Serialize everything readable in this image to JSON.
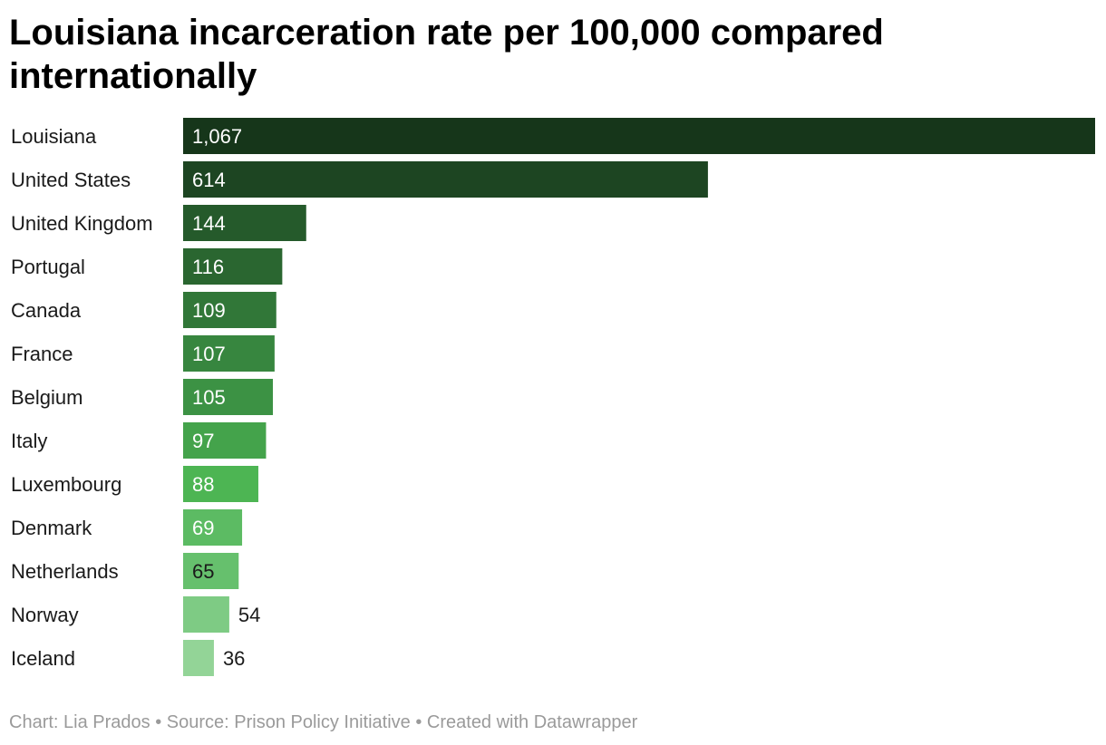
{
  "title": "Louisiana incarceration rate per 100,000 compared internationally",
  "footer": {
    "chart_credit": "Chart: Lia Prados",
    "source": "Source: Prison Policy Initiative",
    "created_with": "Created with Datawrapper"
  },
  "chart_data": {
    "type": "bar",
    "orientation": "horizontal",
    "title": "Louisiana incarceration rate per 100,000 compared internationally",
    "categories": [
      "Louisiana",
      "United States",
      "United Kingdom",
      "Portugal",
      "Canada",
      "France",
      "Belgium",
      "Italy",
      "Luxembourg",
      "Denmark",
      "Netherlands",
      "Norway",
      "Iceland"
    ],
    "values": [
      1067,
      614,
      144,
      116,
      109,
      107,
      105,
      97,
      88,
      69,
      65,
      54,
      36
    ],
    "value_labels": [
      "1,067",
      "614",
      "144",
      "116",
      "109",
      "107",
      "105",
      "97",
      "88",
      "69",
      "65",
      "54",
      "36"
    ],
    "colors": [
      "#16361a",
      "#1d4522",
      "#255a2b",
      "#2a6630",
      "#317738",
      "#37863f",
      "#3c9244",
      "#44a34b",
      "#4db553",
      "#5cbb63",
      "#66c06d",
      "#7ecb84",
      "#93d497"
    ],
    "xlabel": "",
    "ylabel": "",
    "xlim": [
      0,
      1067
    ],
    "grid": false,
    "legend": "none"
  }
}
